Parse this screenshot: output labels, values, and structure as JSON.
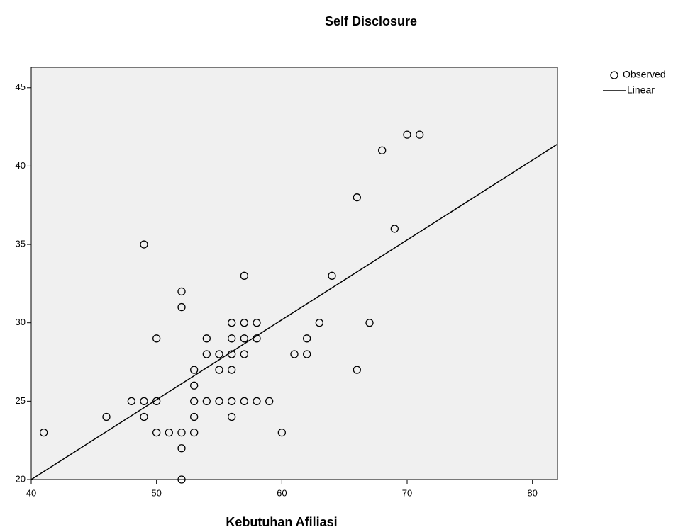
{
  "chart_data": {
    "type": "scatter",
    "title": "Self Disclosure",
    "x_label": "Kebutuhan Afiliasi",
    "xlim": [
      40,
      82
    ],
    "ylim": [
      20,
      46.3
    ],
    "xticks": [
      40,
      50,
      60,
      70,
      80
    ],
    "yticks": [
      20,
      25,
      30,
      35,
      40,
      45
    ],
    "background": "#f0f0f0",
    "legend": "right",
    "series": [
      {
        "name": "Observed",
        "color": "#000000",
        "marker": "circle",
        "x": [
          41,
          46,
          48,
          49,
          49,
          49,
          50,
          50,
          50,
          51,
          52,
          52,
          52,
          52,
          52,
          53,
          53,
          53,
          53,
          53,
          54,
          54,
          54,
          55,
          55,
          55,
          56,
          56,
          56,
          56,
          56,
          56,
          57,
          57,
          57,
          57,
          57,
          58,
          58,
          58,
          59,
          60,
          61,
          62,
          62,
          63,
          64,
          66,
          66,
          67,
          68,
          69,
          70,
          71
        ],
        "values": [
          23,
          24,
          25,
          35,
          25,
          24,
          29,
          25,
          23,
          23,
          32,
          31,
          23,
          22,
          20,
          27,
          26,
          25,
          24,
          23,
          29,
          28,
          25,
          28,
          27,
          25,
          30,
          29,
          28,
          27,
          25,
          24,
          33,
          30,
          29,
          28,
          25,
          30,
          29,
          25,
          25,
          23,
          28,
          29,
          28,
          30,
          33,
          38,
          27,
          30,
          41,
          36,
          42,
          42
        ]
      },
      {
        "name": "Linear",
        "color": "#000000",
        "marker": "line",
        "x": [
          40,
          82
        ],
        "values": [
          20,
          41.4
        ]
      }
    ]
  }
}
